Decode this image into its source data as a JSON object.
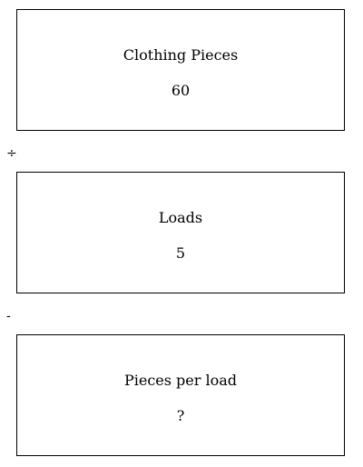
{
  "boxes": [
    {
      "label": "Clothing Pieces",
      "value": "60"
    },
    {
      "label": "Loads",
      "value": "5"
    },
    {
      "label": "Pieces per load",
      "value": "?"
    }
  ],
  "operators": [
    "÷",
    "-"
  ]
}
